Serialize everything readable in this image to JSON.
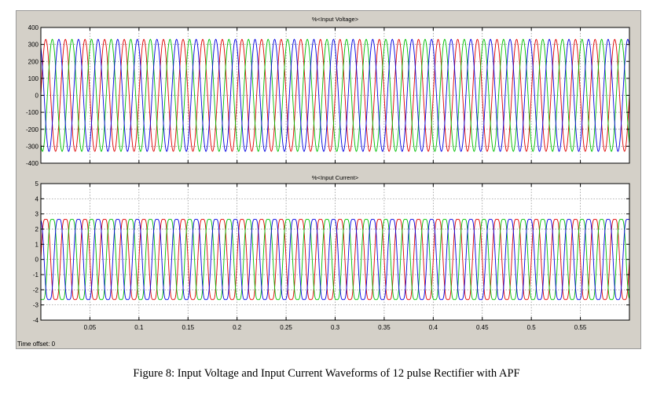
{
  "caption": "Figure 8: Input Voltage and Input Current Waveforms of 12 pulse Rectifier with APF",
  "time_offset_label": "Time offset:  0",
  "colors": {
    "phase_a": "#e00000",
    "phase_b": "#00c000",
    "phase_c": "#0000e0",
    "grid": "#888888",
    "frame": "#d4d0c8",
    "plot_bg": "#ffffff"
  },
  "chart_data": [
    {
      "type": "line",
      "title": "%<Input Voltage>",
      "xlim": [
        0,
        0.6
      ],
      "ylim": [
        -400,
        400
      ],
      "yticks": [
        400,
        300,
        200,
        100,
        0,
        -100,
        -200,
        -300,
        -400
      ],
      "ytick_labels": [
        "400",
        "300",
        "200",
        "100",
        "0",
        "-100",
        "-200",
        "-300",
        "-400"
      ],
      "xticks": [
        0.05,
        0.1,
        0.15,
        0.2,
        0.25,
        0.3,
        0.35,
        0.4,
        0.45,
        0.5,
        0.55
      ],
      "xtick_labels": [],
      "grid": true,
      "waveform": {
        "shape": "sine",
        "amplitude": 330,
        "frequency_hz": 50
      },
      "series": [
        {
          "phase_deg": 0,
          "color": "#e00000"
        },
        {
          "phase_deg": -120,
          "color": "#00c000"
        },
        {
          "phase_deg": 120,
          "color": "#0000e0"
        }
      ]
    },
    {
      "type": "line",
      "title": "%<Input Current>",
      "xlim": [
        0,
        0.6
      ],
      "ylim": [
        -4,
        5
      ],
      "yticks": [
        5,
        4,
        3,
        2,
        1,
        0,
        -1,
        -2,
        -3,
        -4
      ],
      "ytick_labels": [
        "5",
        "4",
        "3",
        "2",
        "1",
        "0",
        "-1",
        "-2",
        "-3",
        "-4"
      ],
      "xticks": [
        0.05,
        0.1,
        0.15,
        0.2,
        0.25,
        0.3,
        0.35,
        0.4,
        0.45,
        0.5,
        0.55
      ],
      "xtick_labels": [
        "0.05",
        "0.1",
        "0.15",
        "0.2",
        "0.25",
        "0.3",
        "0.35",
        "0.4",
        "0.45",
        "0.5",
        "0.55"
      ],
      "grid": true,
      "waveform": {
        "shape": "quasi-sinusoidal",
        "amplitude": 3,
        "frequency_hz": 50
      },
      "series": [
        {
          "phase_deg": 0,
          "color": "#e00000"
        },
        {
          "phase_deg": -120,
          "color": "#00c000"
        },
        {
          "phase_deg": 120,
          "color": "#0000e0"
        }
      ]
    }
  ]
}
